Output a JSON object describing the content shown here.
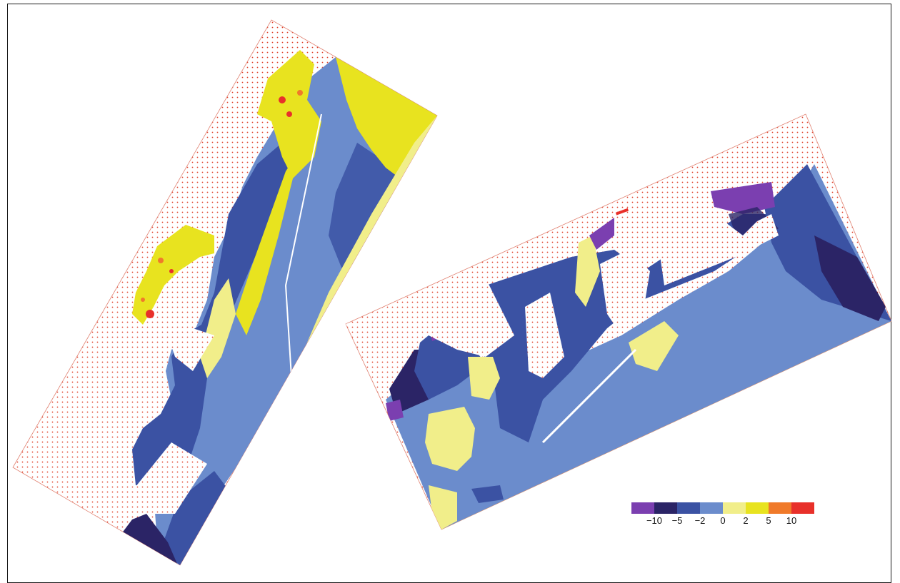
{
  "legend": {
    "colors": [
      "#7b3fb0",
      "#2b2466",
      "#3b52a3",
      "#6b8ccc",
      "#f1ee8a",
      "#e8e31f",
      "#f07a2a",
      "#e8302a"
    ],
    "labels": [
      "−10",
      "−5",
      "−2",
      "0",
      "2",
      "5",
      "10"
    ]
  },
  "map_colors": {
    "land_dot": "#e0402a",
    "deep": "#2b2466",
    "blue": "#3b52a3",
    "light_blue": "#6b8ccc",
    "pale_yellow": "#f1ee8a",
    "yellow": "#e8e31f",
    "orange": "#f07a2a",
    "red": "#e8302a",
    "purple": "#7b3fb0"
  }
}
